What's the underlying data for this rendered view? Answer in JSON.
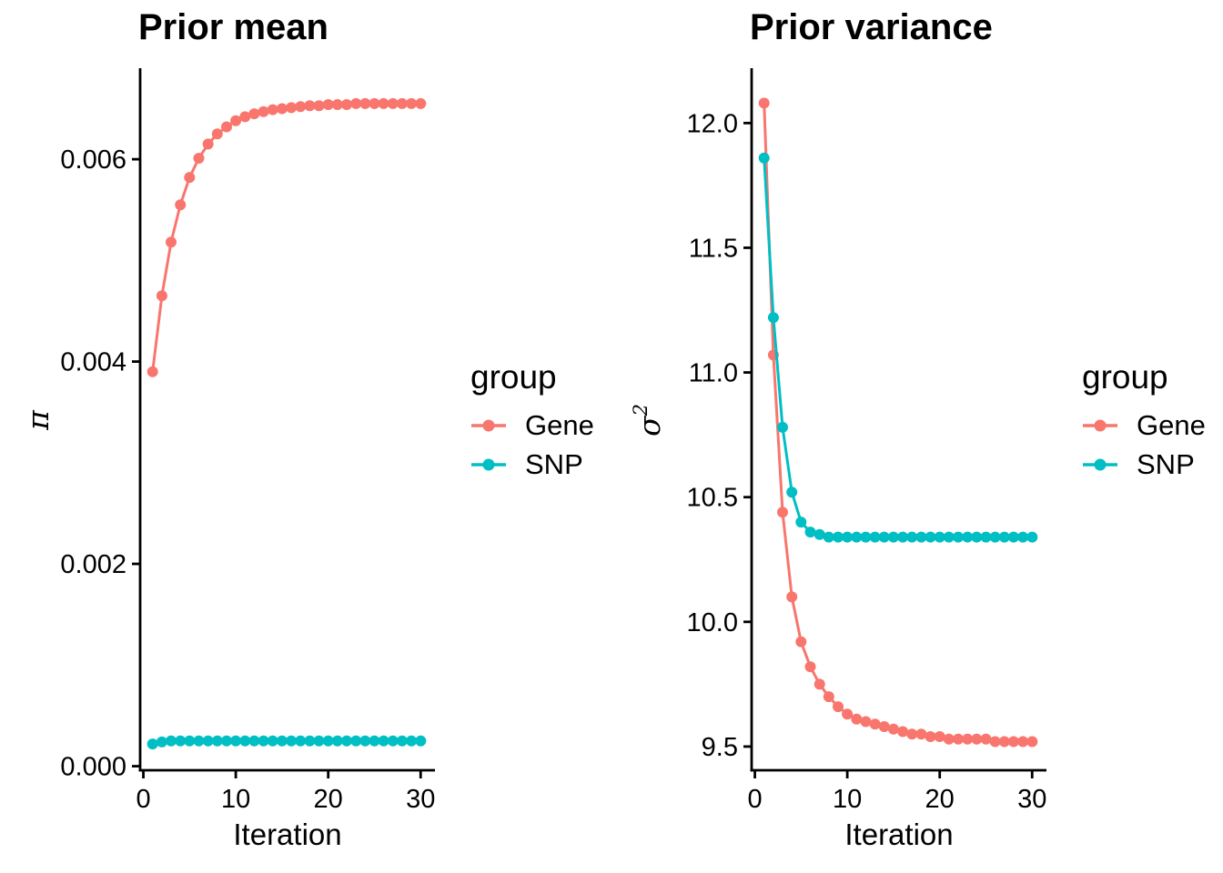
{
  "chart_data": [
    {
      "type": "line",
      "title": "Prior mean",
      "xlabel": "Iteration",
      "ylabel": "π",
      "ylabel_sup": "",
      "legend_title": "group",
      "legend_position": "right",
      "grid": false,
      "x": [
        1,
        2,
        3,
        4,
        5,
        6,
        7,
        8,
        9,
        10,
        11,
        12,
        13,
        14,
        15,
        16,
        17,
        18,
        19,
        20,
        21,
        22,
        23,
        24,
        25,
        26,
        27,
        28,
        29,
        30
      ],
      "xlim": [
        -0.35,
        31.55
      ],
      "ylim": [
        -4e-05,
        0.0069
      ],
      "xticks": {
        "values": [
          0,
          10,
          20,
          30
        ],
        "labels": [
          "0",
          "10",
          "20",
          "30"
        ]
      },
      "yticks": {
        "values": [
          0,
          0.002,
          0.004,
          0.006
        ],
        "labels": [
          "0.000",
          "0.002",
          "0.004",
          "0.006"
        ]
      },
      "series": [
        {
          "name": "Gene",
          "color": "#F8766D",
          "values": [
            0.0039,
            0.00465,
            0.00518,
            0.00555,
            0.00582,
            0.00601,
            0.00615,
            0.00625,
            0.00632,
            0.00638,
            0.00642,
            0.00645,
            0.00647,
            0.00649,
            0.0065,
            0.00651,
            0.00652,
            0.00653,
            0.00653,
            0.00654,
            0.00654,
            0.00654,
            0.00655,
            0.00655,
            0.00655,
            0.00655,
            0.00655,
            0.00655,
            0.00655,
            0.00655
          ]
        },
        {
          "name": "SNP",
          "color": "#00BFC4",
          "values": [
            0.00022,
            0.00024,
            0.00025,
            0.00025,
            0.00025,
            0.00025,
            0.00025,
            0.00025,
            0.00025,
            0.00025,
            0.00025,
            0.00025,
            0.00025,
            0.00025,
            0.00025,
            0.00025,
            0.00025,
            0.00025,
            0.00025,
            0.00025,
            0.00025,
            0.00025,
            0.00025,
            0.00025,
            0.00025,
            0.00025,
            0.00025,
            0.00025,
            0.00025,
            0.00025
          ]
        }
      ]
    },
    {
      "type": "line",
      "title": "Prior variance",
      "xlabel": "Iteration",
      "ylabel": "σ",
      "ylabel_sup": "2",
      "legend_title": "group",
      "legend_position": "right",
      "grid": false,
      "x": [
        1,
        2,
        3,
        4,
        5,
        6,
        7,
        8,
        9,
        10,
        11,
        12,
        13,
        14,
        15,
        16,
        17,
        18,
        19,
        20,
        21,
        22,
        23,
        24,
        25,
        26,
        27,
        28,
        29,
        30
      ],
      "xlim": [
        -0.35,
        31.55
      ],
      "ylim": [
        9.405,
        12.22
      ],
      "xticks": {
        "values": [
          0,
          10,
          20,
          30
        ],
        "labels": [
          "0",
          "10",
          "20",
          "30"
        ]
      },
      "yticks": {
        "values": [
          9.5,
          10.0,
          10.5,
          11.0,
          11.5,
          12.0
        ],
        "labels": [
          "9.5",
          "10.0",
          "10.5",
          "11.0",
          "11.5",
          "12.0"
        ]
      },
      "series": [
        {
          "name": "Gene",
          "color": "#F8766D",
          "values": [
            12.08,
            11.07,
            10.44,
            10.1,
            9.92,
            9.82,
            9.75,
            9.7,
            9.66,
            9.63,
            9.61,
            9.6,
            9.59,
            9.58,
            9.57,
            9.56,
            9.55,
            9.55,
            9.54,
            9.54,
            9.53,
            9.53,
            9.53,
            9.53,
            9.53,
            9.52,
            9.52,
            9.52,
            9.52,
            9.52
          ]
        },
        {
          "name": "SNP",
          "color": "#00BFC4",
          "values": [
            11.86,
            11.22,
            10.78,
            10.52,
            10.4,
            10.36,
            10.35,
            10.34,
            10.34,
            10.34,
            10.34,
            10.34,
            10.34,
            10.34,
            10.34,
            10.34,
            10.34,
            10.34,
            10.34,
            10.34,
            10.34,
            10.34,
            10.34,
            10.34,
            10.34,
            10.34,
            10.34,
            10.34,
            10.34,
            10.34
          ]
        }
      ]
    }
  ]
}
